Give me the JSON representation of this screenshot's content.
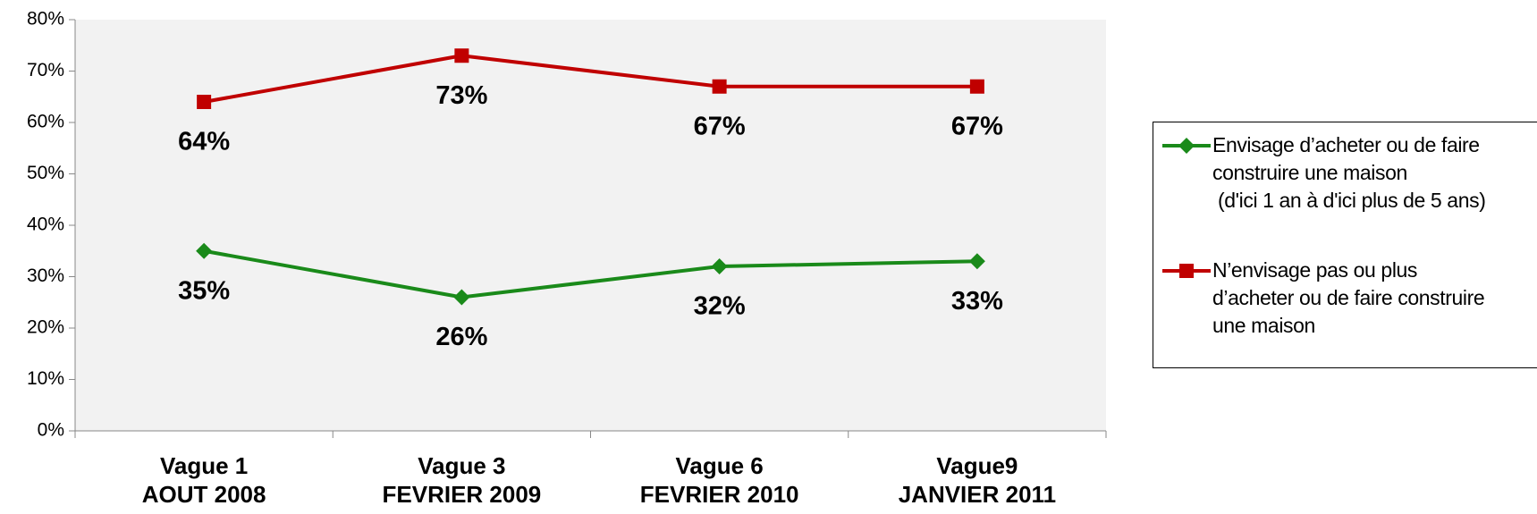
{
  "chart_data": {
    "type": "line",
    "categories": [
      "Vague 1\nAOUT 2008",
      "Vague 3\nFEVRIER 2009",
      "Vague 6\nFEVRIER 2010",
      "Vague9\nJANVIER 2011"
    ],
    "series": [
      {
        "name": "Envisage d’acheter ou de faire\nconstruire une maison\n (d'ici 1 an à d'ici plus de 5 ans)",
        "color": "#1a8a1a",
        "marker": "diamond",
        "values": [
          35,
          26,
          32,
          33
        ],
        "value_labels": [
          "35%",
          "26%",
          "32%",
          "33%"
        ]
      },
      {
        "name": "N’envisage pas ou plus\nd’acheter ou de faire construire\nune maison",
        "color": "#c00000",
        "marker": "square",
        "values": [
          64,
          73,
          67,
          67
        ],
        "value_labels": [
          "64%",
          "73%",
          "67%",
          "67%"
        ]
      }
    ],
    "ylim": [
      0,
      80
    ],
    "yticks": [
      {
        "value": 0,
        "label": "0%"
      },
      {
        "value": 10,
        "label": "10%"
      },
      {
        "value": 20,
        "label": "20%"
      },
      {
        "value": 30,
        "label": "30%"
      },
      {
        "value": 40,
        "label": "40%"
      },
      {
        "value": 50,
        "label": "50%"
      },
      {
        "value": 60,
        "label": "60%"
      },
      {
        "value": 70,
        "label": "70%"
      },
      {
        "value": 80,
        "label": "80%"
      }
    ],
    "grid": false
  }
}
